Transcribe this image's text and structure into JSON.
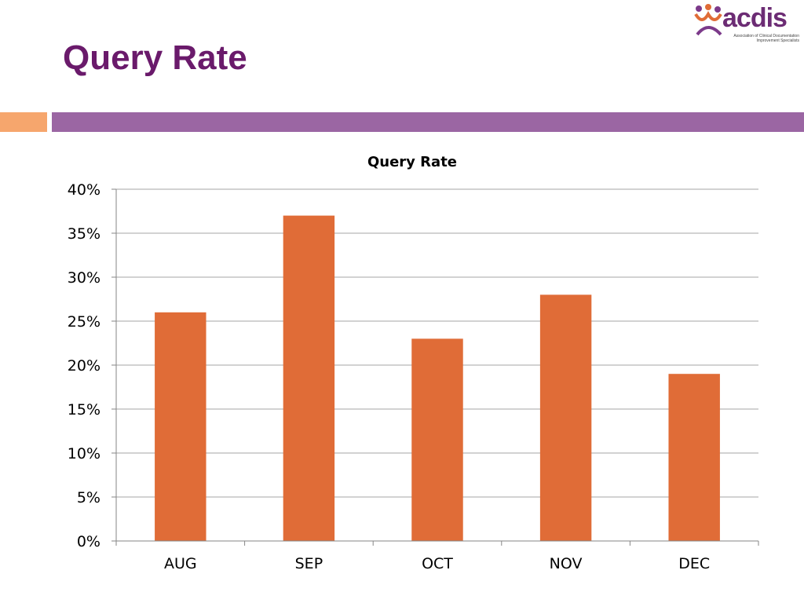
{
  "slide": {
    "title": "Query Rate",
    "accent_colors": {
      "orange": "#f6a66d",
      "purple": "#9b66a3"
    }
  },
  "logo": {
    "wordmark": "acdis",
    "tagline": "Association of Clinical Documentation Improvement Specialists"
  },
  "chart_data": {
    "type": "bar",
    "title": "Query Rate",
    "categories": [
      "AUG",
      "SEP",
      "OCT",
      "NOV",
      "DEC"
    ],
    "values": [
      0.26,
      0.37,
      0.23,
      0.28,
      0.19
    ],
    "xlabel": "",
    "ylabel": "",
    "ylim": [
      0,
      0.4
    ],
    "ytick_values": [
      0,
      0.05,
      0.1,
      0.15,
      0.2,
      0.25,
      0.3,
      0.35,
      0.4
    ],
    "ytick_labels": [
      "0%",
      "5%",
      "10%",
      "15%",
      "20%",
      "25%",
      "30%",
      "35%",
      "40%"
    ],
    "grid": true,
    "legend": "none",
    "bar_color": "#e06c37"
  }
}
